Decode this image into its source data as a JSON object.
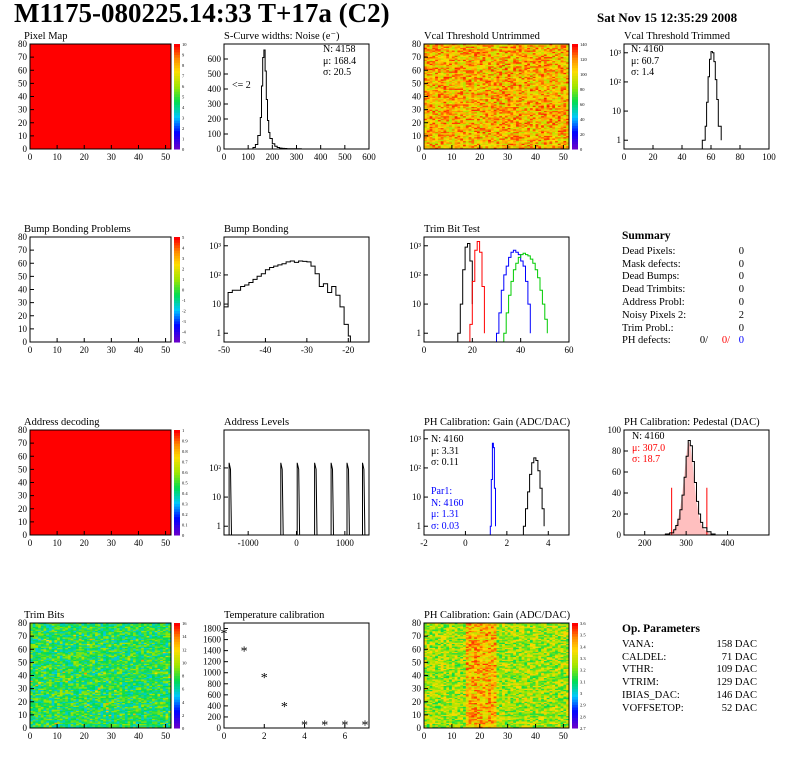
{
  "header": {
    "title": "M1175-080225.14:33 T+17a (C2)",
    "date": "Sat Nov 15 12:35:29 2008"
  },
  "panels": {
    "pixel_map": {
      "title": "Pixel Map"
    },
    "scurve": {
      "title": "S-Curve widths: Noise (e⁻)",
      "stats": [
        "N: 4158",
        "μ: 168.4",
        "σ: 20.5"
      ],
      "note": "<= 2"
    },
    "vcal_untrimmed": {
      "title": "Vcal Threshold Untrimmed"
    },
    "vcal_trimmed": {
      "title": "Vcal Threshold Trimmed",
      "stats": [
        "N: 4160",
        "μ: 60.7",
        "σ:  1.4"
      ]
    },
    "bump_problems": {
      "title": "Bump Bonding Problems"
    },
    "bump_bonding": {
      "title": "Bump Bonding"
    },
    "trim_bit_test": {
      "title": "Trim Bit Test"
    },
    "address_decoding": {
      "title": "Address decoding"
    },
    "address_levels": {
      "title": "Address Levels"
    },
    "ph_gain": {
      "title": "PH Calibration: Gain (ADC/DAC)",
      "stats": [
        "N: 4160",
        "μ: 3.31",
        "σ: 0.11"
      ],
      "stats2": [
        "Par1:",
        "N: 4160",
        "μ: 1.31",
        "σ: 0.03"
      ]
    },
    "ph_pedestal": {
      "title": "PH Calibration: Pedestal (DAC)",
      "stats": [
        "N: 4160",
        "μ: 307.0",
        "σ: 18.7"
      ]
    },
    "trim_bits": {
      "title": "Trim Bits"
    },
    "temperature": {
      "title": "Temperature calibration"
    },
    "ph_gain_map": {
      "title": "PH Calibration: Gain (ADC/DAC)"
    }
  },
  "summary": {
    "title": "Summary",
    "rows": [
      {
        "label": "Dead Pixels:",
        "value": "0"
      },
      {
        "label": "Mask defects:",
        "value": "0"
      },
      {
        "label": "Dead Bumps:",
        "value": "0"
      },
      {
        "label": "Dead Trimbits:",
        "value": "0"
      },
      {
        "label": "Address Probl:",
        "value": "0"
      },
      {
        "label": "Noisy Pixels 2:",
        "value": "2"
      },
      {
        "label": "Trim Probl.:",
        "value": "0"
      }
    ],
    "ph_defects": {
      "label": "PH defects:",
      "v1": "0/",
      "v2": "0/",
      "v3": "0"
    }
  },
  "op_params": {
    "title": "Op. Parameters",
    "rows": [
      {
        "label": "VANA:",
        "value": "158 DAC"
      },
      {
        "label": "CALDEL:",
        "value": "71 DAC"
      },
      {
        "label": "VTHR:",
        "value": "109 DAC"
      },
      {
        "label": "VTRIM:",
        "value": "129 DAC"
      },
      {
        "label": "IBIAS_DAC:",
        "value": "146 DAC"
      },
      {
        "label": "VOFFSETOP:",
        "value": "52 DAC"
      }
    ]
  },
  "colors": {
    "red": "#ff0000",
    "blue": "#0000ff",
    "green": "#00cc00",
    "black": "#000000",
    "axis_frame": "#000000"
  },
  "chart_data": [
    {
      "id": "pixel_map",
      "type": "heatmap",
      "xlim": [
        0,
        52
      ],
      "ylim": [
        0,
        80
      ],
      "xticks": [
        "0",
        "10",
        "20",
        "30",
        "40",
        "50"
      ],
      "yticks": [
        "0",
        "10",
        "20",
        "30",
        "40",
        "50",
        "60",
        "70",
        "80"
      ],
      "zticks": [
        "0",
        "1",
        "2",
        "3",
        "4",
        "5",
        "6",
        "7",
        "8",
        "9",
        "10"
      ],
      "pattern": "uniform",
      "value": 10
    },
    {
      "id": "scurve",
      "type": "line",
      "xlim": [
        0,
        600
      ],
      "ylim": [
        0,
        700
      ],
      "xticks": [
        "0",
        "100",
        "200",
        "300",
        "400",
        "500",
        "600"
      ],
      "yticks": [
        "0",
        "100",
        "200",
        "300",
        "400",
        "500",
        "600"
      ],
      "x": [
        110,
        120,
        130,
        140,
        150,
        155,
        160,
        165,
        170,
        175,
        180,
        185,
        190,
        200,
        210,
        220,
        230,
        240,
        250,
        260,
        280,
        300,
        320
      ],
      "y": [
        0,
        10,
        30,
        90,
        210,
        420,
        610,
        660,
        520,
        330,
        190,
        110,
        70,
        35,
        18,
        10,
        6,
        4,
        3,
        2,
        1,
        1,
        0
      ]
    },
    {
      "id": "vcal_untrimmed",
      "type": "heatmap",
      "xlim": [
        0,
        52
      ],
      "ylim": [
        0,
        80
      ],
      "xticks": [
        "0",
        "10",
        "20",
        "30",
        "40",
        "50"
      ],
      "yticks": [
        "0",
        "10",
        "20",
        "30",
        "40",
        "50",
        "60",
        "70",
        "80"
      ],
      "zticks": [
        "0",
        "20",
        "40",
        "60",
        "80",
        "100",
        "120",
        "140"
      ],
      "pattern": "noise_warm"
    },
    {
      "id": "vcal_trimmed",
      "type": "line",
      "log": true,
      "xlim": [
        0,
        100
      ],
      "ylim": [
        0.5,
        2000
      ],
      "xticks": [
        "0",
        "20",
        "40",
        "60",
        "80",
        "100"
      ],
      "yticks": [
        "1",
        "10",
        "10²",
        "10³"
      ],
      "x": [
        54,
        56,
        57,
        58,
        59,
        60,
        61,
        62,
        63,
        64,
        65,
        67
      ],
      "y": [
        1,
        3,
        20,
        150,
        600,
        1100,
        1000,
        500,
        120,
        25,
        3,
        1
      ]
    },
    {
      "id": "bump_problems",
      "type": "heatmap",
      "xlim": [
        0,
        52
      ],
      "ylim": [
        0,
        80
      ],
      "xticks": [
        "0",
        "10",
        "20",
        "30",
        "40",
        "50"
      ],
      "yticks": [
        "0",
        "10",
        "20",
        "30",
        "40",
        "50",
        "60",
        "70",
        "80"
      ],
      "zticks": [
        "-5",
        "-4",
        "-3",
        "-2",
        "-1",
        "0",
        "1",
        "2",
        "3",
        "4",
        "5"
      ],
      "pattern": "empty"
    },
    {
      "id": "bump_bonding",
      "type": "line",
      "log": true,
      "xlim": [
        -50,
        -15
      ],
      "ylim": [
        0.5,
        2000
      ],
      "xticks": [
        "-50",
        "-40",
        "-30",
        "-20"
      ],
      "yticks": [
        "1",
        "10",
        "10²",
        "10³"
      ],
      "x": [
        -50,
        -49,
        -48,
        -47,
        -46,
        -45,
        -44,
        -43,
        -42,
        -41,
        -40,
        -39,
        -38,
        -37,
        -36,
        -35,
        -34,
        -33,
        -32,
        -31,
        -30,
        -29,
        -28,
        -27,
        -26,
        -25,
        -24,
        -23,
        -22,
        -21,
        -20,
        -19.5
      ],
      "y": [
        8,
        25,
        30,
        30,
        40,
        45,
        55,
        70,
        90,
        110,
        150,
        180,
        200,
        220,
        240,
        280,
        300,
        270,
        300,
        290,
        280,
        200,
        110,
        40,
        50,
        25,
        40,
        20,
        8,
        2,
        0.8,
        0.5
      ]
    },
    {
      "id": "trim_bit_test",
      "type": "line",
      "log": true,
      "xlim": [
        0,
        60
      ],
      "ylim": [
        0.5,
        2000
      ],
      "xticks": [
        "0",
        "20",
        "40",
        "60"
      ],
      "yticks": [
        "1",
        "10",
        "10²",
        "10³"
      ],
      "series": [
        {
          "color": "#000000",
          "x": [
            14,
            15,
            16,
            17,
            18,
            19,
            20
          ],
          "y": [
            1,
            10,
            150,
            900,
            1200,
            300,
            10
          ]
        },
        {
          "color": "#ff0000",
          "x": [
            19,
            20,
            21,
            22,
            23,
            24,
            25
          ],
          "y": [
            2,
            60,
            700,
            1400,
            600,
            40,
            1
          ]
        },
        {
          "color": "#0000ff",
          "x": [
            30,
            31,
            32,
            33,
            34,
            35,
            36,
            37,
            38,
            39,
            40,
            41,
            42,
            43,
            44
          ],
          "y": [
            1,
            5,
            30,
            100,
            200,
            400,
            600,
            700,
            600,
            500,
            300,
            200,
            60,
            10,
            1
          ]
        },
        {
          "color": "#00cc00",
          "x": [
            33,
            34,
            35,
            36,
            37,
            38,
            39,
            40,
            41,
            42,
            43,
            44,
            45,
            46,
            47,
            48,
            49,
            50,
            51
          ],
          "y": [
            1,
            5,
            20,
            60,
            150,
            250,
            400,
            500,
            550,
            500,
            450,
            350,
            250,
            150,
            80,
            30,
            10,
            3,
            1
          ]
        }
      ]
    },
    {
      "id": "address_decoding",
      "type": "heatmap",
      "xlim": [
        0,
        52
      ],
      "ylim": [
        0,
        80
      ],
      "xticks": [
        "0",
        "10",
        "20",
        "30",
        "40",
        "50"
      ],
      "yticks": [
        "0",
        "10",
        "20",
        "30",
        "40",
        "50",
        "60",
        "70",
        "80"
      ],
      "zticks": [
        "0",
        "0.1",
        "0.2",
        "0.3",
        "0.4",
        "0.5",
        "0.6",
        "0.7",
        "0.8",
        "0.9",
        "1"
      ],
      "pattern": "uniform",
      "value": 1
    },
    {
      "id": "address_levels",
      "type": "line",
      "log": true,
      "xlim": [
        -1500,
        1500
      ],
      "ylim": [
        0.5,
        2000
      ],
      "xticks": [
        "-1000",
        "0",
        "1000"
      ],
      "yticks": [
        "1",
        "10",
        "10²"
      ],
      "peaks": [
        -1380,
        -310,
        30,
        390,
        730,
        1060,
        1380
      ],
      "peak_height": 150
    },
    {
      "id": "ph_gain",
      "type": "line",
      "log": true,
      "xlim": [
        -2,
        5
      ],
      "ylim": [
        0.5,
        2000
      ],
      "xticks": [
        "-2",
        "0",
        "2",
        "4"
      ],
      "yticks": [
        "1",
        "10",
        "10²",
        "10³"
      ],
      "series": [
        {
          "color": "#000000",
          "x": [
            2.8,
            2.9,
            3.0,
            3.1,
            3.2,
            3.3,
            3.4,
            3.5,
            3.6,
            3.7,
            3.8
          ],
          "y": [
            1,
            4,
            15,
            60,
            150,
            220,
            180,
            80,
            20,
            4,
            1
          ]
        },
        {
          "color": "#0000ff",
          "x": [
            1.2,
            1.25,
            1.3,
            1.35,
            1.4,
            1.45
          ],
          "y": [
            1,
            40,
            700,
            500,
            20,
            1
          ]
        }
      ]
    },
    {
      "id": "ph_pedestal",
      "type": "line",
      "xlim": [
        150,
        500
      ],
      "ylim": [
        0,
        100
      ],
      "xticks": [
        "200",
        "300",
        "400"
      ],
      "yticks": [
        "0",
        "20",
        "40",
        "60",
        "80",
        "100"
      ],
      "x": [
        240,
        250,
        260,
        270,
        275,
        280,
        285,
        290,
        295,
        300,
        305,
        310,
        315,
        320,
        325,
        330,
        335,
        340,
        350,
        360,
        370
      ],
      "y": [
        0,
        1,
        2,
        5,
        9,
        15,
        24,
        38,
        55,
        75,
        90,
        85,
        70,
        50,
        32,
        20,
        12,
        7,
        3,
        1,
        0
      ],
      "markers": [
        265,
        350
      ]
    },
    {
      "id": "trim_bits",
      "type": "heatmap",
      "xlim": [
        0,
        52
      ],
      "ylim": [
        0,
        80
      ],
      "xticks": [
        "0",
        "10",
        "20",
        "30",
        "40",
        "50"
      ],
      "yticks": [
        "0",
        "10",
        "20",
        "30",
        "40",
        "50",
        "60",
        "70",
        "80"
      ],
      "zticks": [
        "0",
        "2",
        "4",
        "6",
        "8",
        "10",
        "12",
        "14",
        "16"
      ],
      "pattern": "noise_green"
    },
    {
      "id": "temperature",
      "type": "scatter",
      "xlim": [
        0,
        7.2
      ],
      "ylim": [
        0,
        1900
      ],
      "xticks": [
        "0",
        "2",
        "4",
        "6"
      ],
      "yticks": [
        "0",
        "200",
        "400",
        "600",
        "800",
        "1000",
        "1200",
        "1400",
        "1600",
        "1800"
      ],
      "x": [
        0,
        1,
        2,
        3,
        4,
        5,
        6,
        7
      ],
      "y": [
        1720,
        1400,
        920,
        400,
        60,
        60,
        60,
        60
      ]
    },
    {
      "id": "ph_gain_map",
      "type": "heatmap",
      "xlim": [
        0,
        52
      ],
      "ylim": [
        0,
        80
      ],
      "xticks": [
        "0",
        "10",
        "20",
        "30",
        "40",
        "50"
      ],
      "yticks": [
        "0",
        "10",
        "20",
        "30",
        "40",
        "50",
        "60",
        "70",
        "80"
      ],
      "zticks": [
        "2.7",
        "2.8",
        "2.9",
        "3",
        "3.1",
        "3.2",
        "3.3",
        "3.4",
        "3.5",
        "3.6"
      ],
      "pattern": "noise_stripes"
    }
  ]
}
